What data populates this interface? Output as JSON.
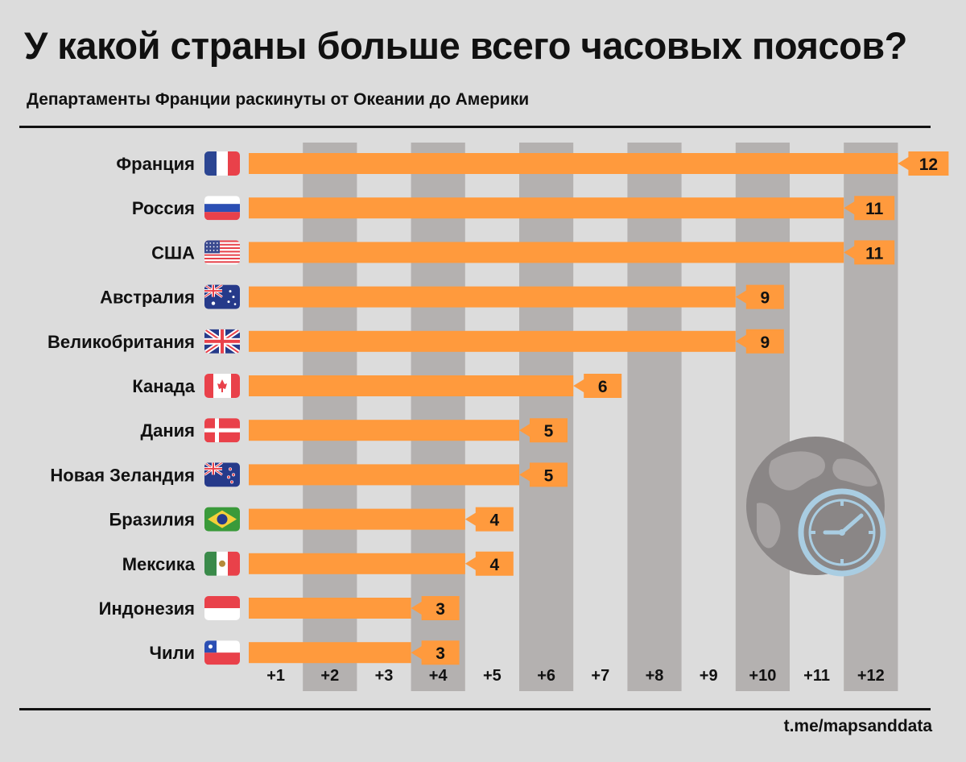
{
  "title": "У какой страны больше всего часовых поясов?",
  "subtitle": "Департаменты Франции раскинуты от Океании до Америки",
  "source": "t.me/mapsanddata",
  "colors": {
    "bar": "#ff9a3d",
    "stripe": "#b4b1b0",
    "background": "#dcdcdc",
    "text": "#111111",
    "clock": "#a9cde2"
  },
  "chart_data": {
    "type": "bar",
    "orientation": "horizontal",
    "title": "У какой страны больше всего часовых поясов?",
    "subtitle": "Департаменты Франции раскинуты от Океании до Америки",
    "categories": [
      "Франция",
      "Россия",
      "США",
      "Австралия",
      "Великобритания",
      "Канада",
      "Дания",
      "Новая Зеландия",
      "Бразилия",
      "Мексика",
      "Индонезия",
      "Чили"
    ],
    "values": [
      12,
      11,
      11,
      9,
      9,
      6,
      5,
      5,
      4,
      4,
      3,
      3
    ],
    "flags": [
      "fr",
      "ru",
      "us",
      "au",
      "gb",
      "ca",
      "dk",
      "nz",
      "br",
      "mx",
      "id",
      "cl"
    ],
    "x_ticks": [
      "+1",
      "+2",
      "+3",
      "+4",
      "+5",
      "+6",
      "+7",
      "+8",
      "+9",
      "+10",
      "+11",
      "+12"
    ],
    "xlim": [
      0,
      12
    ],
    "grid": "alternating vertical stripes"
  }
}
